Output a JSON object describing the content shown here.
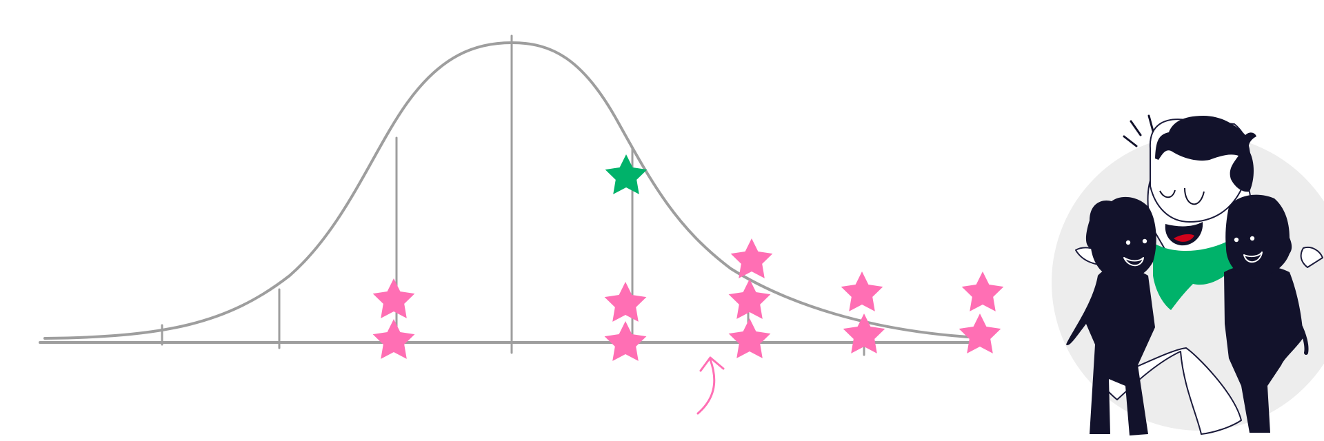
{
  "colors": {
    "curve": "#9e9e9e",
    "axis": "#9e9e9e",
    "star_pink": "#ff6fb4",
    "star_green": "#00b26a",
    "figure_dark": "#12122b",
    "figure_light": "#ffffff",
    "scarf": "#00b26a",
    "backdrop": "#ededed"
  },
  "illustration": {
    "distribution": "normal-curve",
    "marker": "star-icon",
    "highlighted_marker": "green-star-icon",
    "pointer": "curved-arrow-icon",
    "figures": [
      "person-dark-left",
      "person-center",
      "person-dark-right"
    ]
  }
}
